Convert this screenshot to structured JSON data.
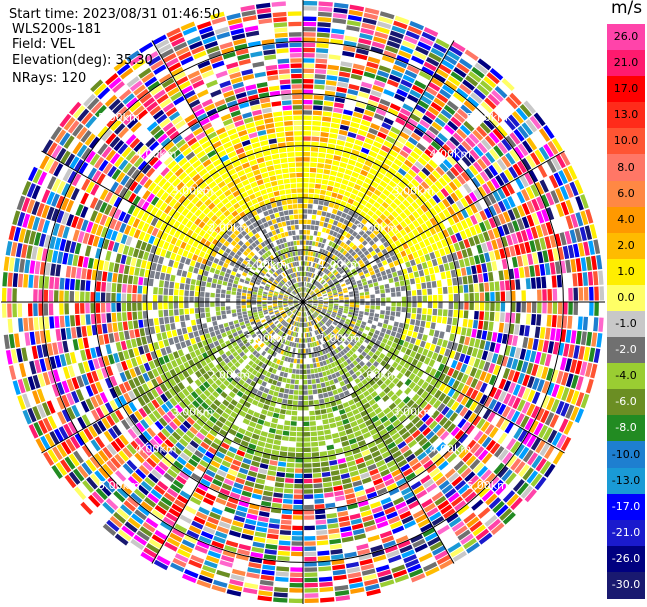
{
  "header": {
    "start_time": "Start time: 2023/08/31 01:46:50",
    "instrument": "WLS200s-181",
    "field": "Field: VEL",
    "elevation": "Elevation(deg): 35.30",
    "nrays": "NRays: 120"
  },
  "colorbar": {
    "unit": "m/s",
    "ticks": [
      "26.0",
      "21.0",
      "17.0",
      "13.0",
      "10.0",
      "8.0",
      "6.0",
      "4.0",
      "2.0",
      "1.0",
      "0.0",
      "-1.0",
      "-2.0",
      "-4.0",
      "-6.0",
      "-8.0",
      "-10.0",
      "-13.0",
      "-17.0",
      "-21.0",
      "-26.0",
      "-30.0"
    ],
    "colors": [
      "#ff44aa",
      "#ff1a6e",
      "#ff0000",
      "#ff2b1a",
      "#ff5533",
      "#ff7766",
      "#ff8844",
      "#ff9900",
      "#ffbb00",
      "#ffee00",
      "#ffff66",
      "#c8c8c8",
      "#707070",
      "#9acd32",
      "#6b8e23",
      "#228b22",
      "#1e7fd0",
      "#1a9ad6",
      "#0000ff",
      "#1a1acd",
      "#000080",
      "#191970"
    ]
  },
  "range_labels": [
    "1.00km",
    "2.00km",
    "3.00km",
    "4.00km",
    "5.00km"
  ],
  "chart_data": {
    "type": "heatmap",
    "projection": "polar PPI",
    "field": "VEL",
    "units": "m/s",
    "elevation_deg": 35.3,
    "n_rays": 120,
    "range_rings_km": [
      1.0,
      2.0,
      3.0,
      4.0,
      5.0
    ],
    "max_range_km": 5.8,
    "color_scale": [
      -30,
      -26,
      -21,
      -17,
      -13,
      -10,
      -8,
      -6,
      -4,
      -2,
      -1,
      0,
      1,
      2,
      4,
      6,
      8,
      10,
      13,
      17,
      21,
      26
    ],
    "velocity_pattern": {
      "near_field_km": [
        0,
        1.2
      ],
      "near_values": [
        0.0,
        -2.0,
        1.0
      ],
      "north_sector_value": 2.0,
      "south_sector_value": -2.0,
      "outer_field": "noise (all bins)"
    }
  }
}
